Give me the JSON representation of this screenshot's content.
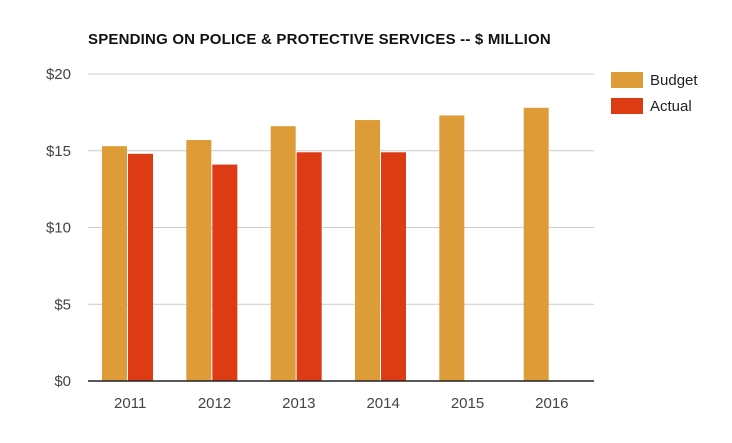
{
  "chart_data": {
    "type": "bar",
    "title": "SPENDING ON POLICE & PROTECTIVE SERVICES -- $ MILLION",
    "xlabel": "",
    "ylabel": "",
    "categories": [
      "2011",
      "2012",
      "2013",
      "2014",
      "2015",
      "2016"
    ],
    "series": [
      {
        "name": "Budget",
        "color": "#dd9c37",
        "values": [
          15.3,
          15.7,
          16.6,
          17.0,
          17.3,
          17.8
        ]
      },
      {
        "name": "Actual",
        "color": "#dc3b14",
        "values": [
          14.8,
          14.1,
          14.9,
          14.9,
          null,
          null
        ]
      }
    ],
    "ylim": [
      0,
      20
    ],
    "yticks": [
      0,
      5,
      10,
      15,
      20
    ],
    "ytick_labels": [
      "$0",
      "$5",
      "$10",
      "$15",
      "$20"
    ],
    "grid": true,
    "legend_position": "top-right"
  }
}
